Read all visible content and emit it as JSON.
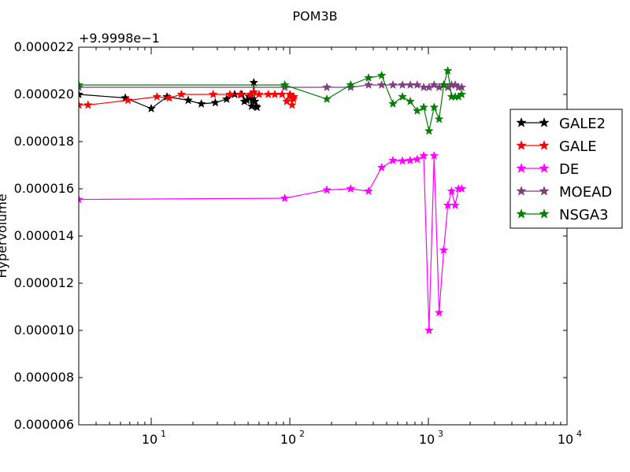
{
  "chart_data": {
    "type": "scatter",
    "title": "POM3B",
    "xlabel": "",
    "ylabel": "Hypervolume",
    "x_scale": "log",
    "xlim": [
      3,
      10000
    ],
    "ylim": [
      6e-06,
      2.2e-05
    ],
    "y_offset_label": "+9.9998e−1",
    "x_ticks": [
      {
        "value": 10,
        "base": "10",
        "exp": "1"
      },
      {
        "value": 100,
        "base": "10",
        "exp": "2"
      },
      {
        "value": 1000,
        "base": "10",
        "exp": "3"
      },
      {
        "value": 10000,
        "base": "10",
        "exp": "4"
      }
    ],
    "y_ticks": [
      {
        "value": 6e-06,
        "label": "0.000006"
      },
      {
        "value": 8e-06,
        "label": "0.000008"
      },
      {
        "value": 1e-05,
        "label": "0.000010"
      },
      {
        "value": 1.2e-05,
        "label": "0.000012"
      },
      {
        "value": 1.4e-05,
        "label": "0.000014"
      },
      {
        "value": 1.6e-05,
        "label": "0.000016"
      },
      {
        "value": 1.8e-05,
        "label": "0.000018"
      },
      {
        "value": 2e-05,
        "label": "0.000020"
      },
      {
        "value": 2.2e-05,
        "label": "0.000022"
      }
    ],
    "grid": false,
    "legend_position": "right",
    "series": [
      {
        "name": "GALE2",
        "color": "#000000",
        "points": [
          [
            3,
            2e-05
          ],
          [
            6.5,
            1.985e-05
          ],
          [
            10,
            1.94e-05
          ],
          [
            13,
            1.99e-05
          ],
          [
            18.5,
            1.975e-05
          ],
          [
            23,
            1.96e-05
          ],
          [
            29,
            1.965e-05
          ],
          [
            35,
            1.98e-05
          ],
          [
            40,
            2e-05
          ],
          [
            45,
            2e-05
          ],
          [
            47,
            1.97e-05
          ],
          [
            49,
            1.975e-05
          ],
          [
            51,
            1.99e-05
          ],
          [
            53,
            1.95e-05
          ],
          [
            54,
            1.98e-05
          ],
          [
            55,
            2.05e-05
          ],
          [
            56,
            1.97e-05
          ],
          [
            57,
            1.95e-05
          ],
          [
            58,
            1.945e-05
          ]
        ]
      },
      {
        "name": "GALE",
        "color": "#ff0000",
        "points": [
          [
            3,
            1.955e-05
          ],
          [
            3.5,
            1.955e-05
          ],
          [
            6.8,
            1.975e-05
          ],
          [
            11,
            1.99e-05
          ],
          [
            13.5,
            1.985e-05
          ],
          [
            16.5,
            2e-05
          ],
          [
            28,
            2e-05
          ],
          [
            37,
            2e-05
          ],
          [
            44,
            2e-05
          ],
          [
            52,
            2e-05
          ],
          [
            55,
            2.01e-05
          ],
          [
            60,
            2e-05
          ],
          [
            70,
            2e-05
          ],
          [
            78,
            2e-05
          ],
          [
            88,
            2e-05
          ],
          [
            95,
            1.97e-05
          ],
          [
            100,
            2e-05
          ],
          [
            102,
            1.99e-05
          ],
          [
            104,
            1.955e-05
          ],
          [
            105,
            1.985e-05
          ],
          [
            106,
            1.98e-05
          ],
          [
            107,
            1.99e-05
          ]
        ]
      },
      {
        "name": "DE",
        "color": "#ff00ff",
        "points": [
          [
            3,
            1.555e-05
          ],
          [
            92,
            1.56e-05
          ],
          [
            185,
            1.595e-05
          ],
          [
            275,
            1.6e-05
          ],
          [
            370,
            1.59e-05
          ],
          [
            460,
            1.69e-05
          ],
          [
            555,
            1.72e-05
          ],
          [
            650,
            1.718e-05
          ],
          [
            740,
            1.72e-05
          ],
          [
            830,
            1.725e-05
          ],
          [
            925,
            1.74e-05
          ],
          [
            1010,
            1e-05
          ],
          [
            1100,
            1.74e-05
          ],
          [
            1195,
            1.075e-05
          ],
          [
            1290,
            1.34e-05
          ],
          [
            1380,
            1.53e-05
          ],
          [
            1470,
            1.59e-05
          ],
          [
            1560,
            1.53e-05
          ],
          [
            1650,
            1.6e-05
          ],
          [
            1740,
            1.6e-05
          ]
        ]
      },
      {
        "name": "MOEAD",
        "color": "#7f3f7f",
        "points": [
          [
            3,
            2.03e-05
          ],
          [
            92,
            2.03e-05
          ],
          [
            185,
            2.03e-05
          ],
          [
            275,
            2.03e-05
          ],
          [
            370,
            2.04e-05
          ],
          [
            460,
            2.04e-05
          ],
          [
            555,
            2.04e-05
          ],
          [
            650,
            2.04e-05
          ],
          [
            740,
            2.04e-05
          ],
          [
            830,
            2.04e-05
          ],
          [
            925,
            2.03e-05
          ],
          [
            1010,
            2.03e-05
          ],
          [
            1100,
            2.04e-05
          ],
          [
            1195,
            2.03e-05
          ],
          [
            1290,
            2.04e-05
          ],
          [
            1380,
            2.03e-05
          ],
          [
            1470,
            2.04e-05
          ],
          [
            1560,
            2.04e-05
          ],
          [
            1650,
            2.03e-05
          ],
          [
            1740,
            2.03e-05
          ]
        ]
      },
      {
        "name": "NSGA3",
        "color": "#007f00",
        "points": [
          [
            3,
            2.04e-05
          ],
          [
            92,
            2.04e-05
          ],
          [
            185,
            1.98e-05
          ],
          [
            275,
            2.04e-05
          ],
          [
            370,
            2.07e-05
          ],
          [
            460,
            2.08e-05
          ],
          [
            555,
            1.96e-05
          ],
          [
            650,
            1.99e-05
          ],
          [
            740,
            1.97e-05
          ],
          [
            830,
            1.93e-05
          ],
          [
            925,
            1.945e-05
          ],
          [
            1010,
            1.845e-05
          ],
          [
            1100,
            1.945e-05
          ],
          [
            1195,
            1.895e-05
          ],
          [
            1290,
            2.04e-05
          ],
          [
            1380,
            2.1e-05
          ],
          [
            1470,
            1.99e-05
          ],
          [
            1560,
            1.99e-05
          ],
          [
            1650,
            1.99e-05
          ],
          [
            1740,
            2e-05
          ]
        ]
      }
    ]
  }
}
